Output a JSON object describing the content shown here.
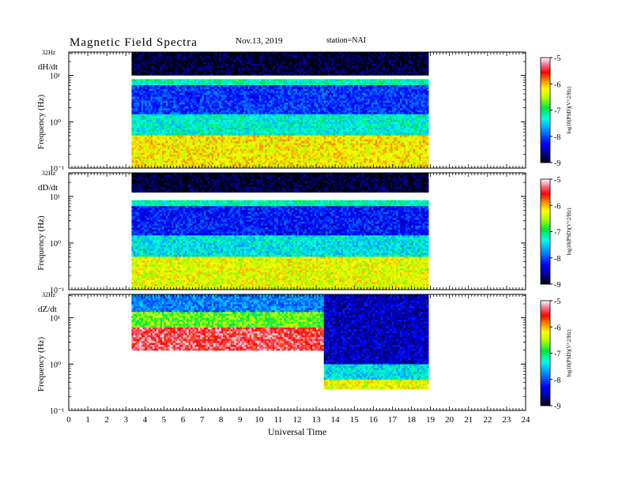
{
  "header": {
    "title": "Magnetic  Field  Spectra",
    "date": "Nov.13, 2019",
    "station": "station=NAI"
  },
  "chart_data": [
    {
      "type": "heatmap",
      "panel": "dH/dt",
      "ylabel": "Frequency (Hz)",
      "top_label": "32Hz",
      "y_ticks": [
        "10¹",
        "10⁰",
        "10⁻¹"
      ],
      "ylim_hz": [
        0.1,
        32
      ],
      "y_scale": "log",
      "data_start_ut": 3.3,
      "data_end_ut": 18.8,
      "description_bands": [
        {
          "hz_from": 10,
          "hz_to": 32,
          "level": -8.9
        },
        {
          "hz_from": 6.5,
          "hz_to": 8.5,
          "level": -7.2
        },
        {
          "hz_from": 1.5,
          "hz_to": 6,
          "level": -8.1
        },
        {
          "hz_from": 0.5,
          "hz_to": 1.5,
          "level": -7.3
        },
        {
          "hz_from": 0.1,
          "hz_to": 0.5,
          "level": -6.2
        }
      ],
      "colorbar": {
        "label": "log10(PSD)(V^2/Hz)",
        "ticks": [
          "-5",
          "-6",
          "-7",
          "-8",
          "-9"
        ],
        "range": [
          -9,
          -5
        ]
      }
    },
    {
      "type": "heatmap",
      "panel": "dD/dt",
      "ylabel": "Frequency (Hz)",
      "top_label": "32Hz",
      "y_ticks": [
        "10¹",
        "10⁰",
        "10⁻¹"
      ],
      "ylim_hz": [
        0.1,
        32
      ],
      "y_scale": "log",
      "data_start_ut": 3.3,
      "data_end_ut": 18.8,
      "description_bands": [
        {
          "hz_from": 12,
          "hz_to": 32,
          "level": -8.9
        },
        {
          "hz_from": 6.5,
          "hz_to": 8.5,
          "level": -7.2
        },
        {
          "hz_from": 1.5,
          "hz_to": 6,
          "level": -8.2
        },
        {
          "hz_from": 0.5,
          "hz_to": 1.5,
          "level": -7.4
        },
        {
          "hz_from": 0.1,
          "hz_to": 0.5,
          "level": -6.3
        }
      ],
      "colorbar": {
        "label": "log10(PSD)(V^2/Hz)",
        "ticks": [
          "-5",
          "-6",
          "-7",
          "-8",
          "-9"
        ],
        "range": [
          -9,
          -5
        ]
      }
    },
    {
      "type": "heatmap",
      "panel": "dZ/dt",
      "ylabel": "Frequency (Hz)",
      "top_label": "32Hz",
      "y_ticks": [
        "10¹",
        "10⁰",
        "10⁻¹"
      ],
      "ylim_hz": [
        0.1,
        32
      ],
      "y_scale": "log",
      "data_start_ut": 3.3,
      "change_ut": 13.35,
      "data_end_ut": 18.8,
      "description_bands": [
        {
          "segment": "before",
          "hz_from": 14,
          "hz_to": 32,
          "level": -7.8
        },
        {
          "segment": "before",
          "hz_from": 6,
          "hz_to": 14,
          "level": -6.7
        },
        {
          "segment": "before",
          "hz_from": 2,
          "hz_to": 6,
          "level": -5.4
        },
        {
          "segment": "after",
          "hz_from": 1,
          "hz_to": 32,
          "level": -8.5
        },
        {
          "segment": "after",
          "hz_from": 0.45,
          "hz_to": 1,
          "level": -7.4
        },
        {
          "segment": "after",
          "hz_from": 0.3,
          "hz_to": 0.45,
          "level": -6.3
        }
      ],
      "colorbar": {
        "label": "log10(PSD)(V^2/Hz)",
        "ticks": [
          "-5",
          "-6",
          "-7",
          "-8",
          "-9"
        ],
        "range": [
          -9,
          -5
        ]
      }
    }
  ],
  "xaxis": {
    "label": "Universal Time",
    "ticks": [
      "0",
      "1",
      "2",
      "3",
      "4",
      "5",
      "6",
      "7",
      "8",
      "9",
      "10",
      "11",
      "12",
      "13",
      "14",
      "15",
      "16",
      "17",
      "18",
      "19",
      "20",
      "21",
      "22",
      "23",
      "24"
    ],
    "range_hours": [
      0,
      24
    ]
  }
}
